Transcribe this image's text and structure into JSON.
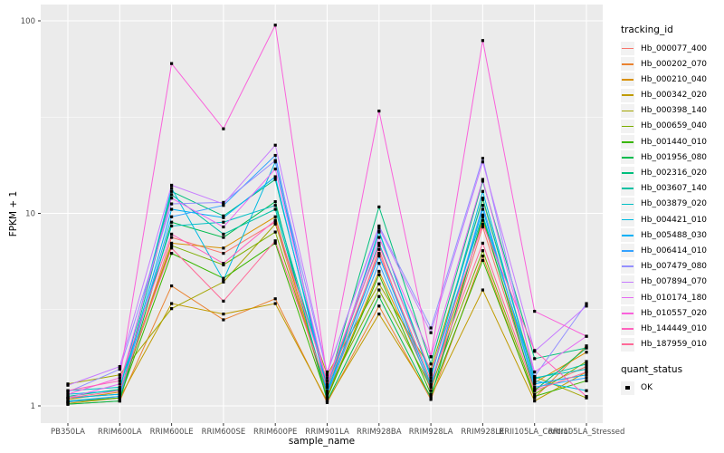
{
  "chart_data": {
    "type": "line",
    "xlabel": "sample_name",
    "ylabel": "FPKM + 1",
    "yscale": "log10",
    "ylim": [
      1,
      110
    ],
    "yticks": [
      1,
      10,
      100
    ],
    "ytick_labels": [
      "1",
      "10",
      "100"
    ],
    "yminor": [
      3.162,
      31.62
    ],
    "grid": true,
    "legend_position": "right",
    "panel_bg": "#EBEBEB",
    "grid_color": "#FFFFFF",
    "point_color": "#000000",
    "axis_text_color": "#4D4D4D",
    "categories": [
      "PB350LA",
      "RRIM600LA",
      "RRIM600LE",
      "RRIM600SE",
      "RRIM600PE",
      "RRIM901LA",
      "RRIM928BA",
      "RRIM928LA",
      "RRIM928LE",
      "RRII105LA_Control",
      "RRII105LA_Stressed"
    ],
    "series": [
      {
        "name": "Hb_000077_400",
        "color": "#F8766D",
        "values": [
          1.05,
          1.1,
          7.5,
          6.2,
          9.0,
          1.1,
          6.5,
          1.2,
          8.5,
          1.22,
          1.6
        ]
      },
      {
        "name": "Hb_000202_070",
        "color": "#EA8331",
        "values": [
          1.02,
          1.06,
          4.2,
          2.8,
          3.6,
          1.04,
          3.3,
          1.08,
          6.0,
          1.1,
          2.05
        ]
      },
      {
        "name": "Hb_000210_040",
        "color": "#D89000",
        "values": [
          1.08,
          1.18,
          7.0,
          6.6,
          9.6,
          1.12,
          5.0,
          1.28,
          9.2,
          1.32,
          1.9
        ]
      },
      {
        "name": "Hb_000342_020",
        "color": "#C09B00",
        "values": [
          1.03,
          1.1,
          3.4,
          3.0,
          3.4,
          1.06,
          3.0,
          1.12,
          4.0,
          1.06,
          1.5
        ]
      },
      {
        "name": "Hb_000398_140",
        "color": "#A3A500",
        "values": [
          1.3,
          1.45,
          3.2,
          4.4,
          8.8,
          1.45,
          4.3,
          1.55,
          11.8,
          1.42,
          1.1
        ]
      },
      {
        "name": "Hb_000659_040",
        "color": "#7CAE00",
        "values": [
          1.1,
          1.15,
          6.8,
          5.4,
          8.0,
          1.18,
          4.0,
          1.25,
          6.4,
          1.15,
          1.7
        ]
      },
      {
        "name": "Hb_001440_010",
        "color": "#39B600",
        "values": [
          1.05,
          1.1,
          6.2,
          4.6,
          7.0,
          1.1,
          4.8,
          1.15,
          5.7,
          1.12,
          1.35
        ]
      },
      {
        "name": "Hb_001956_080",
        "color": "#00BB4E",
        "values": [
          1.02,
          1.06,
          9.0,
          7.5,
          11.5,
          1.06,
          3.7,
          1.1,
          9.6,
          1.2,
          2.0
        ]
      },
      {
        "name": "Hb_002316_020",
        "color": "#00BF7D",
        "values": [
          1.12,
          1.22,
          13.0,
          9.7,
          15.0,
          1.25,
          10.8,
          1.65,
          14.7,
          1.76,
          2.0
        ]
      },
      {
        "name": "Hb_003607_140",
        "color": "#00C1A3",
        "values": [
          1.06,
          1.12,
          12.5,
          7.8,
          10.5,
          1.15,
          8.0,
          1.45,
          12.0,
          1.38,
          1.65
        ]
      },
      {
        "name": "Hb_003879_020",
        "color": "#00BFC4",
        "values": [
          1.2,
          1.25,
          8.6,
          9.0,
          11.0,
          1.28,
          7.0,
          1.46,
          9.8,
          1.4,
          1.55
        ]
      },
      {
        "name": "Hb_004421_010",
        "color": "#00BAE0",
        "values": [
          1.15,
          1.2,
          13.5,
          4.5,
          18.5,
          1.2,
          8.1,
          1.4,
          13.0,
          1.35,
          1.2
        ]
      },
      {
        "name": "Hb_005488_030",
        "color": "#00B0F6",
        "values": [
          1.1,
          1.15,
          10.5,
          9.5,
          15.5,
          1.18,
          6.0,
          1.3,
          10.5,
          1.3,
          1.45
        ]
      },
      {
        "name": "Hb_006414_010",
        "color": "#35A2FF",
        "values": [
          1.05,
          1.12,
          9.6,
          11.0,
          20.0,
          1.15,
          5.5,
          1.25,
          11.0,
          1.25,
          1.4
        ]
      },
      {
        "name": "Hb_007479_080",
        "color": "#9590FF",
        "values": [
          1.18,
          1.55,
          11.2,
          11.4,
          18.8,
          1.48,
          8.6,
          2.54,
          19.3,
          1.42,
          3.4
        ]
      },
      {
        "name": "Hb_007894_070",
        "color": "#C77CFF",
        "values": [
          1.28,
          1.6,
          14.0,
          11.2,
          22.6,
          1.5,
          8.4,
          2.4,
          18.5,
          1.92,
          3.3
        ]
      },
      {
        "name": "Hb_010174_180",
        "color": "#E76BF3",
        "values": [
          1.1,
          1.3,
          12.0,
          8.5,
          17.0,
          1.3,
          7.5,
          1.8,
          15.0,
          1.5,
          2.3
        ]
      },
      {
        "name": "Hb_010557_020",
        "color": "#FA62DB",
        "values": [
          1.15,
          1.4,
          60.0,
          27.5,
          95.0,
          1.4,
          34.0,
          1.8,
          79.0,
          3.1,
          2.3
        ]
      },
      {
        "name": "Hb_144449_010",
        "color": "#FF62BC",
        "values": [
          1.2,
          1.35,
          7.8,
          5.5,
          9.2,
          1.35,
          6.8,
          1.5,
          8.8,
          1.94,
          1.12
        ]
      },
      {
        "name": "Hb_187959_010",
        "color": "#FF6A98",
        "values": [
          1.1,
          1.2,
          6.6,
          3.5,
          7.2,
          1.25,
          6.2,
          1.35,
          7.0,
          1.2,
          1.5
        ]
      }
    ],
    "legend": {
      "tracking_title": "tracking_id",
      "quant_title": "quant_status",
      "quant_items": [
        {
          "label": "OK"
        }
      ],
      "key_bg": "#F2F2F2"
    }
  }
}
